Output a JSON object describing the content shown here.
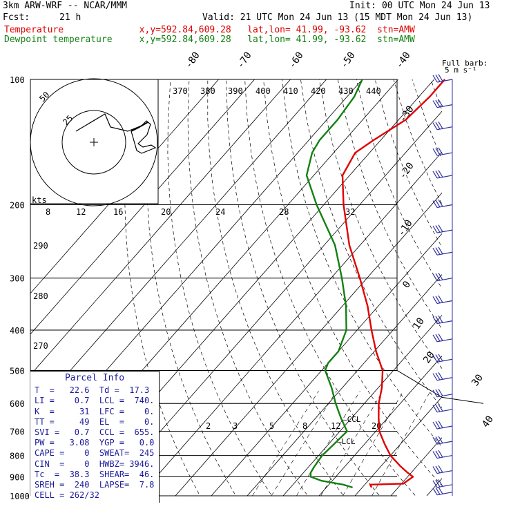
{
  "header": {
    "model": "3km ARW-WRF -- NCAR/MMM",
    "init": "Init: 00 UTC Mon 24 Jun 13",
    "fcst_label": "Fcst:",
    "fcst_value": "21 h",
    "valid": "Valid: 21 UTC Mon 24 Jun 13 (15 MDT Mon 24 Jun 13)",
    "temp_line": "Temperature              x,y=592.84,609.28   lat,lon= 41.99, -93.62  stn=AMW",
    "dew_line": "Dewpoint temperature     x,y=592.84,609.28   lat,lon= 41.99, -93.62  stn=AMW"
  },
  "colors": {
    "temperature": "#e00000",
    "dewpoint": "#128012",
    "parcel_text": "#1a1a9a",
    "barb": "#3030a0"
  },
  "barb_legend": {
    "line1": "Full barb:",
    "line2": "5 m s⁻¹"
  },
  "parcel_info": {
    "title": "Parcel Info",
    "rows": [
      "T  =   22.6  Td =  17.3",
      "LI =    0.7  LCL =  740.",
      "K  =     31  LFC =    0.",
      "TT =     49  EL  =    0.",
      "SVI =   0.7  CCL =  655.",
      "PW =   3.08  YGP =   0.0",
      "CAPE =    0  SWEAT=  245",
      "CIN  =    0  HWBZ= 3946.",
      "Tc  =  38.3  SHEAR=  46.",
      "SREH =  240  LAPSE=  7.8",
      "CELL = 262/32"
    ]
  },
  "hodograph": {
    "units": "kts",
    "ring_labels": [
      "50",
      "25"
    ]
  },
  "chart_data": {
    "type": "line",
    "title": "",
    "ylabel": "",
    "xlabel": "",
    "y_scale": "log-pressure",
    "ylim": [
      1000,
      100
    ],
    "isobars": [
      1000,
      900,
      800,
      700,
      600,
      500,
      400,
      300,
      200,
      100
    ],
    "isotherm_labels": [
      "-80",
      "-70",
      "-60",
      "-50",
      "-40",
      "-30",
      "-20",
      "-10",
      "0",
      "10",
      "20",
      "30",
      "40"
    ],
    "mixing_ratio_labels": [
      "2",
      "3",
      "5",
      "8",
      "12",
      "20",
      "8",
      "12",
      "16",
      "20",
      "24",
      "28",
      "32"
    ],
    "theta_e_labels": [
      "370",
      "380",
      "390",
      "400",
      "410",
      "420",
      "430",
      "440"
    ],
    "dry_adiabat_labels": [
      "290",
      "280",
      "270"
    ],
    "marker_labels": {
      "ccl": "CCL",
      "lcl": "LCL"
    },
    "series": [
      {
        "name": "Temperature",
        "pressure": [
          955,
          940,
          935,
          900,
          880,
          850,
          800,
          750,
          700,
          650,
          600,
          550,
          500,
          450,
          400,
          350,
          300,
          250,
          200,
          170,
          150,
          140,
          125,
          110,
          100
        ],
        "temperature": [
          22.6,
          21.5,
          30.5,
          31.5,
          29,
          25.5,
          20,
          15.5,
          11,
          7.5,
          4,
          1,
          -3,
          -9.5,
          -16,
          -23,
          -32,
          -43,
          -54.5,
          -62,
          -64,
          -62,
          -58,
          -57,
          -57
        ]
      },
      {
        "name": "Dewpoint temperature",
        "pressure": [
          955,
          940,
          920,
          900,
          880,
          850,
          800,
          750,
          700,
          650,
          600,
          550,
          500,
          480,
          450,
          400,
          350,
          300,
          250,
          200,
          170,
          150,
          140,
          125,
          110,
          100
        ],
        "temperature": [
          17.3,
          14,
          7,
          3,
          2,
          1.5,
          1,
          1.5,
          2,
          -3,
          -8,
          -13,
          -19,
          -20,
          -20,
          -23,
          -29,
          -37,
          -47,
          -62,
          -72,
          -76,
          -77,
          -77,
          -78,
          -80
        ]
      }
    ],
    "wind_levels_hpa": [
      100,
      115,
      130,
      150,
      170,
      200,
      230,
      260,
      300,
      340,
      380,
      420,
      470,
      520,
      570,
      620,
      680,
      740,
      800,
      870,
      940,
      980
    ]
  }
}
